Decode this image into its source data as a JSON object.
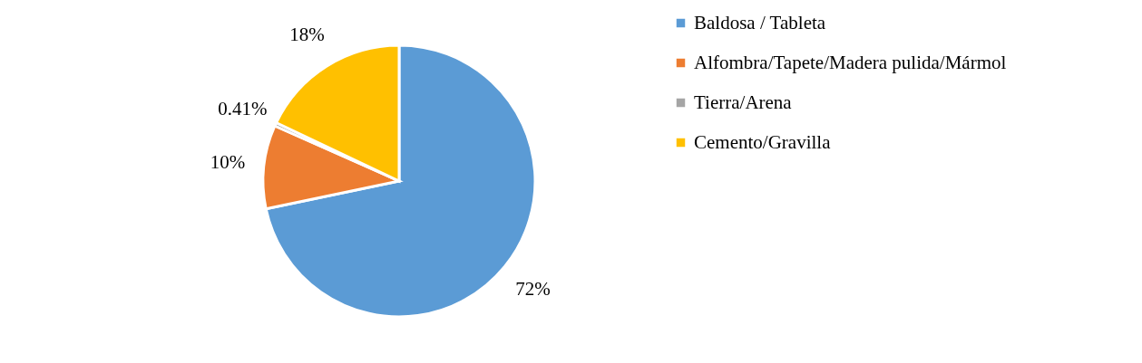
{
  "chart_data": {
    "type": "pie",
    "categories": [
      "Baldosa / Tableta",
      "Alfombra/Tapete/Madera pulida/Mármol",
      "Tierra/Arena",
      "Cemento/Gravilla"
    ],
    "values": [
      72,
      10,
      0.41,
      18
    ],
    "colors": [
      "#5b9bd5",
      "#ed7d31",
      "#a5a5a5",
      "#ffc000"
    ],
    "value_labels": [
      "72%",
      "10%",
      "0.41%",
      "18%"
    ],
    "legend": "right"
  }
}
